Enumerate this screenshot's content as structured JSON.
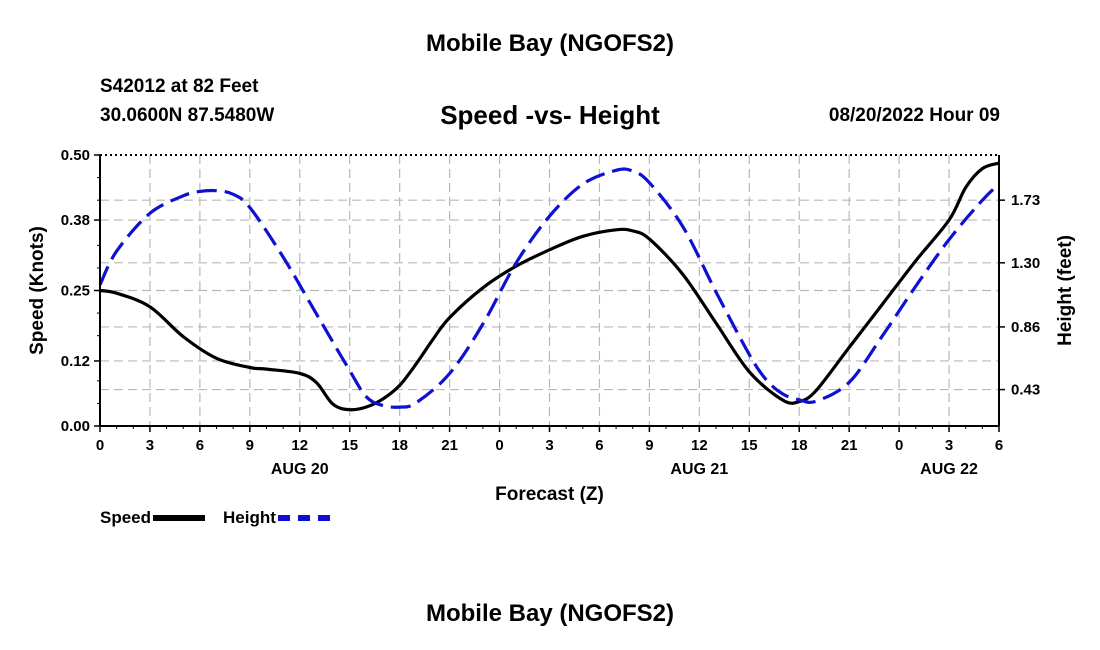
{
  "header": {
    "title": "Mobile Bay (NGOFS2)",
    "station": "S42012 at 82 Feet",
    "coords": "30.0600N  87.5480W",
    "subtitle": "Speed -vs- Height",
    "datetime": "08/20/2022 Hour 09"
  },
  "footer": {
    "title": "Mobile Bay (NGOFS2)"
  },
  "legend": {
    "speed_label": "Speed",
    "height_label": "Height"
  },
  "chart_data": {
    "type": "line",
    "title": "Speed -vs- Height",
    "xlabel": "Forecast (Z)",
    "ylabel": "Speed (Knots)",
    "y2label": "Height (feet)",
    "x_hours_range": [
      0,
      54
    ],
    "xticks": {
      "step_hours": 3,
      "labels": [
        "0",
        "3",
        "6",
        "9",
        "12",
        "15",
        "18",
        "21",
        "0",
        "3",
        "6",
        "9",
        "12",
        "15",
        "18",
        "21",
        "0",
        "3",
        "6"
      ]
    },
    "date_labels": [
      {
        "hour": 12,
        "label": "AUG 20"
      },
      {
        "hour": 36,
        "label": "AUG 21"
      },
      {
        "hour": 51,
        "label": "AUG 22"
      }
    ],
    "ylim": [
      0,
      0.5
    ],
    "yticks": [
      "0.00",
      "0.12",
      "0.25",
      "0.38",
      "0.50"
    ],
    "y2lim": [
      0.18,
      2.04
    ],
    "y2ticks": [
      "0.43",
      "0.86",
      "1.30",
      "1.73"
    ],
    "grid": true,
    "colors": {
      "speed": "#000000",
      "height": "#1010d0",
      "grid": "#b8b8b8"
    },
    "series": [
      {
        "name": "Speed",
        "axis": "left",
        "style": "solid",
        "x": [
          0,
          1,
          3,
          5,
          7,
          9,
          10,
          12,
          13,
          14,
          15,
          16,
          17,
          18,
          19,
          20,
          21,
          23,
          25,
          27,
          29,
          31,
          32,
          33,
          35,
          37,
          39,
          41,
          42,
          43,
          45,
          47,
          49,
          51,
          52,
          53,
          54
        ],
        "values": [
          0.25,
          0.245,
          0.22,
          0.165,
          0.125,
          0.108,
          0.105,
          0.097,
          0.08,
          0.04,
          0.03,
          0.035,
          0.05,
          0.075,
          0.115,
          0.16,
          0.2,
          0.255,
          0.295,
          0.325,
          0.35,
          0.362,
          0.36,
          0.345,
          0.28,
          0.19,
          0.1,
          0.048,
          0.045,
          0.065,
          0.145,
          0.225,
          0.305,
          0.38,
          0.44,
          0.475,
          0.485
        ]
      },
      {
        "name": "Height",
        "axis": "right",
        "style": "dashed",
        "x": [
          0,
          1,
          3,
          5,
          6,
          7,
          8,
          9,
          11,
          13,
          15,
          16,
          17,
          18,
          19,
          21,
          23,
          25,
          27,
          29,
          31,
          32,
          33,
          35,
          37,
          39,
          40,
          41,
          42,
          43,
          45,
          47,
          49,
          51,
          53,
          54
        ],
        "values": [
          1.15,
          1.38,
          1.64,
          1.76,
          1.79,
          1.795,
          1.77,
          1.68,
          1.34,
          0.95,
          0.56,
          0.38,
          0.32,
          0.31,
          0.34,
          0.54,
          0.88,
          1.3,
          1.62,
          1.84,
          1.935,
          1.93,
          1.85,
          1.55,
          1.1,
          0.67,
          0.5,
          0.4,
          0.36,
          0.35,
          0.48,
          0.8,
          1.14,
          1.46,
          1.73,
          1.84
        ]
      }
    ]
  }
}
